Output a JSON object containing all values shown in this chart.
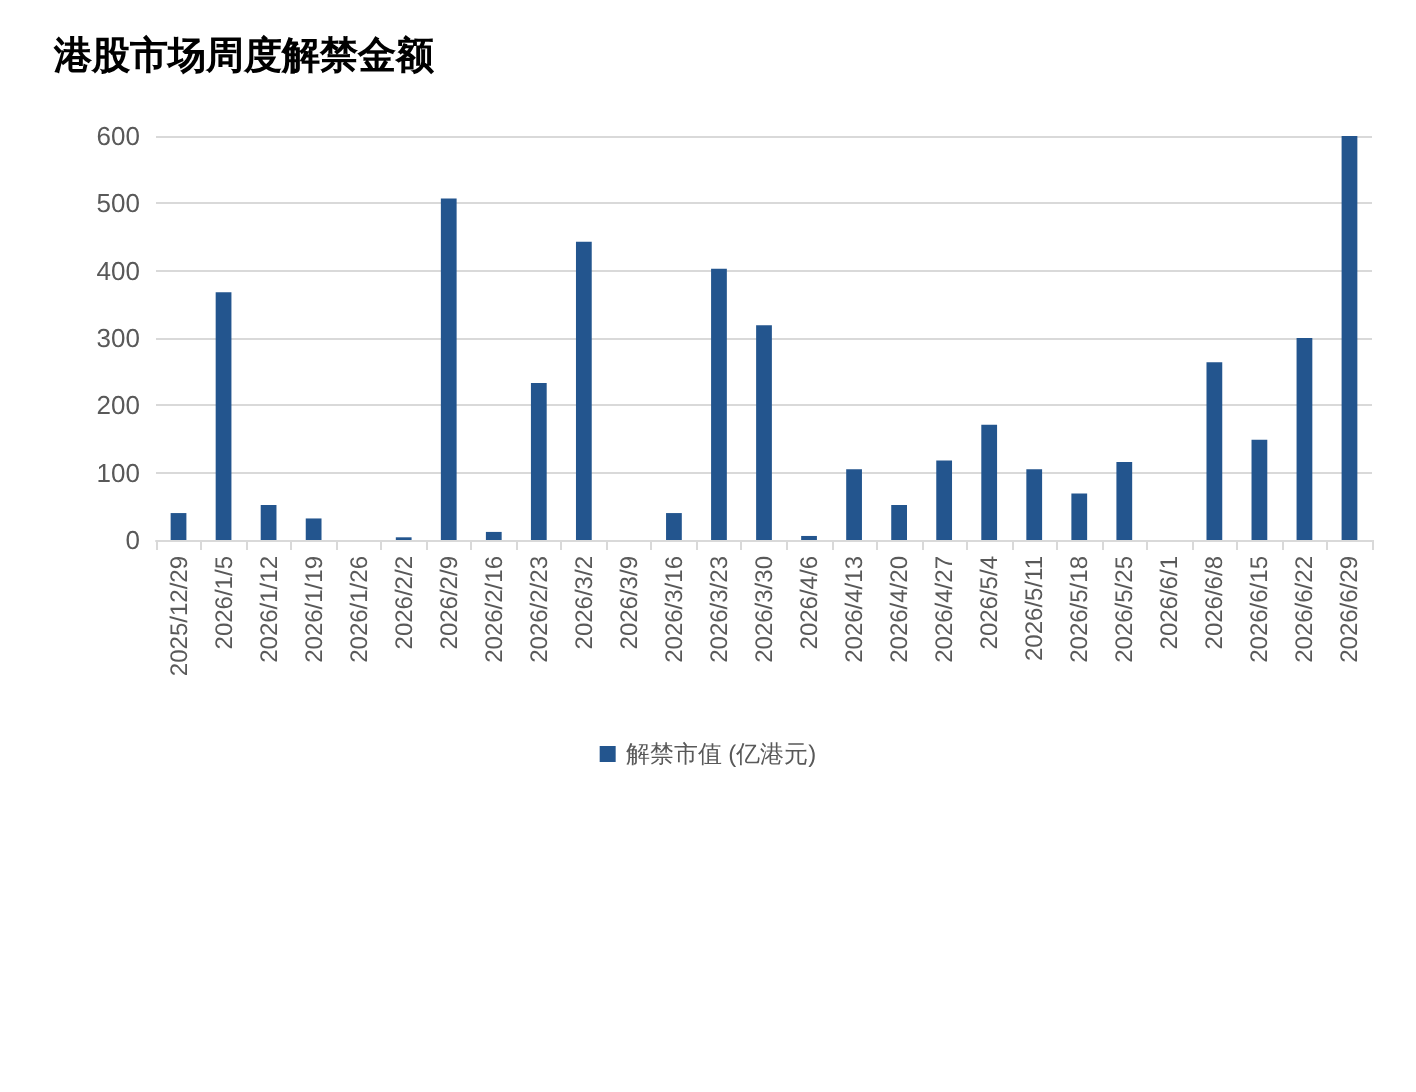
{
  "chart_data": {
    "type": "bar",
    "title": "港股市场周度解禁金额",
    "categories": [
      "2025/12/29",
      "2026/1/5",
      "2026/1/12",
      "2026/1/19",
      "2026/1/26",
      "2026/2/2",
      "2026/2/9",
      "2026/2/16",
      "2026/2/23",
      "2026/3/2",
      "2026/3/9",
      "2026/3/16",
      "2026/3/23",
      "2026/3/30",
      "2026/4/6",
      "2026/4/13",
      "2026/4/20",
      "2026/4/27",
      "2026/5/4",
      "2026/5/11",
      "2026/5/18",
      "2026/5/25",
      "2026/6/1",
      "2026/6/8",
      "2026/6/15",
      "2026/6/22",
      "2026/6/29"
    ],
    "series": [
      {
        "name": "解禁市值 (亿港元)",
        "color": "#23558e",
        "values": [
          40,
          368,
          52,
          32,
          0,
          4,
          507,
          12,
          233,
          443,
          0,
          40,
          403,
          319,
          6,
          105,
          52,
          118,
          171,
          105,
          69,
          116,
          0,
          264,
          149,
          300,
          600
        ]
      }
    ],
    "ylim": [
      0,
      600
    ],
    "yticks": [
      0,
      100,
      200,
      300,
      400,
      500,
      600
    ],
    "grid": "y",
    "legend": "bottom"
  }
}
